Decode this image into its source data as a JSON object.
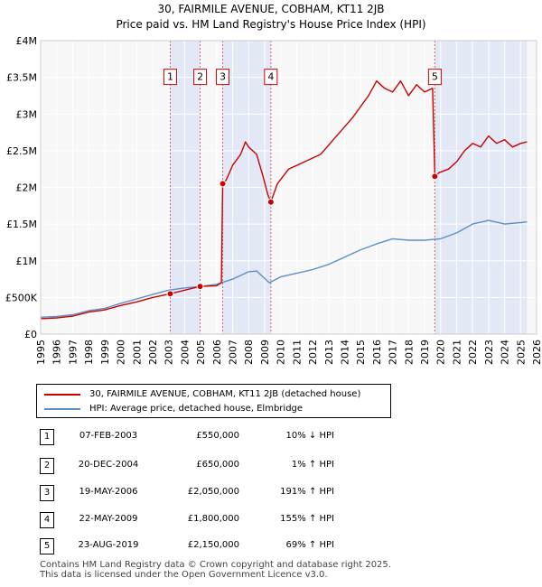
{
  "chart_data": {
    "type": "line",
    "title": "30, FAIRMILE AVENUE, COBHAM, KT11 2JB",
    "subtitle": "Price paid vs. HM Land Registry's House Price Index (HPI)",
    "xlabel": "",
    "ylabel": "",
    "xlim": [
      1995,
      2026
    ],
    "ylim": [
      0,
      4000000
    ],
    "grid": true,
    "x_ticks": [
      "1995",
      "1996",
      "1997",
      "1998",
      "1999",
      "2000",
      "2001",
      "2002",
      "2003",
      "2004",
      "2005",
      "2006",
      "2007",
      "2008",
      "2009",
      "2010",
      "2011",
      "2012",
      "2013",
      "2014",
      "2015",
      "2016",
      "2017",
      "2018",
      "2019",
      "2020",
      "2021",
      "2022",
      "2023",
      "2024",
      "2025",
      "2026"
    ],
    "y_ticks": [
      {
        "value": 0,
        "label": "£0"
      },
      {
        "value": 500000,
        "label": "£500K"
      },
      {
        "value": 1000000,
        "label": "£1M"
      },
      {
        "value": 1500000,
        "label": "£1.5M"
      },
      {
        "value": 2000000,
        "label": "£2M"
      },
      {
        "value": 2500000,
        "label": "£2.5M"
      },
      {
        "value": 3000000,
        "label": "£3M"
      },
      {
        "value": 3500000,
        "label": "£3.5M"
      },
      {
        "value": 4000000,
        "label": "£4M"
      }
    ],
    "shaded_periods": [
      [
        2003.1,
        2004.97
      ],
      [
        2006.38,
        2009.39
      ],
      [
        2019.64,
        2025.4
      ]
    ],
    "series": [
      {
        "name": "30, FAIRMILE AVENUE, COBHAM, KT11 2JB (detached house)",
        "color": "#cc0000",
        "points": [
          [
            1995.0,
            210000
          ],
          [
            1996.0,
            220000
          ],
          [
            1997.0,
            245000
          ],
          [
            1998.0,
            300000
          ],
          [
            1999.0,
            330000
          ],
          [
            2000.0,
            390000
          ],
          [
            2001.0,
            440000
          ],
          [
            2002.0,
            500000
          ],
          [
            2003.1,
            550000
          ],
          [
            2004.0,
            600000
          ],
          [
            2004.97,
            650000
          ],
          [
            2006.0,
            660000
          ],
          [
            2006.3,
            700000
          ],
          [
            2006.38,
            2050000
          ],
          [
            2006.6,
            2100000
          ],
          [
            2007.0,
            2300000
          ],
          [
            2007.5,
            2450000
          ],
          [
            2007.8,
            2620000
          ],
          [
            2008.0,
            2550000
          ],
          [
            2008.5,
            2450000
          ],
          [
            2008.9,
            2150000
          ],
          [
            2009.2,
            1900000
          ],
          [
            2009.39,
            1800000
          ],
          [
            2009.8,
            2050000
          ],
          [
            2010.5,
            2250000
          ],
          [
            2011.5,
            2350000
          ],
          [
            2012.5,
            2450000
          ],
          [
            2013.5,
            2700000
          ],
          [
            2014.5,
            2950000
          ],
          [
            2015.5,
            3250000
          ],
          [
            2016.0,
            3450000
          ],
          [
            2016.5,
            3350000
          ],
          [
            2017.0,
            3300000
          ],
          [
            2017.5,
            3450000
          ],
          [
            2018.0,
            3250000
          ],
          [
            2018.5,
            3400000
          ],
          [
            2019.0,
            3300000
          ],
          [
            2019.5,
            3350000
          ],
          [
            2019.64,
            2150000
          ],
          [
            2019.9,
            2200000
          ],
          [
            2020.5,
            2250000
          ],
          [
            2021.0,
            2350000
          ],
          [
            2021.5,
            2500000
          ],
          [
            2022.0,
            2600000
          ],
          [
            2022.5,
            2550000
          ],
          [
            2023.0,
            2700000
          ],
          [
            2023.5,
            2600000
          ],
          [
            2024.0,
            2650000
          ],
          [
            2024.5,
            2550000
          ],
          [
            2025.0,
            2600000
          ],
          [
            2025.4,
            2620000
          ]
        ]
      },
      {
        "name": "HPI: Average price, detached house, Elmbridge",
        "color": "#5b8fc7",
        "points": [
          [
            1995.0,
            230000
          ],
          [
            1996.0,
            240000
          ],
          [
            1997.0,
            265000
          ],
          [
            1998.0,
            320000
          ],
          [
            1999.0,
            350000
          ],
          [
            2000.0,
            420000
          ],
          [
            2001.0,
            480000
          ],
          [
            2002.0,
            540000
          ],
          [
            2003.0,
            600000
          ],
          [
            2004.0,
            630000
          ],
          [
            2005.0,
            650000
          ],
          [
            2006.0,
            680000
          ],
          [
            2007.0,
            750000
          ],
          [
            2008.0,
            850000
          ],
          [
            2008.5,
            860000
          ],
          [
            2009.0,
            760000
          ],
          [
            2009.3,
            700000
          ],
          [
            2010.0,
            780000
          ],
          [
            2011.0,
            830000
          ],
          [
            2012.0,
            880000
          ],
          [
            2013.0,
            950000
          ],
          [
            2014.0,
            1050000
          ],
          [
            2015.0,
            1150000
          ],
          [
            2016.0,
            1230000
          ],
          [
            2017.0,
            1300000
          ],
          [
            2018.0,
            1280000
          ],
          [
            2019.0,
            1280000
          ],
          [
            2020.0,
            1300000
          ],
          [
            2021.0,
            1380000
          ],
          [
            2022.0,
            1500000
          ],
          [
            2023.0,
            1550000
          ],
          [
            2024.0,
            1500000
          ],
          [
            2025.0,
            1520000
          ],
          [
            2025.4,
            1530000
          ]
        ]
      }
    ],
    "markers": [
      {
        "label": "1",
        "x": 2003.1,
        "y": 550000
      },
      {
        "label": "2",
        "x": 2004.97,
        "y": 650000
      },
      {
        "label": "3",
        "x": 2006.38,
        "y": 2050000
      },
      {
        "label": "4",
        "x": 2009.39,
        "y": 1800000
      },
      {
        "label": "5",
        "x": 2019.64,
        "y": 2150000
      }
    ]
  },
  "legend": [
    {
      "label": "30, FAIRMILE AVENUE, COBHAM, KT11 2JB (detached house)",
      "color": "#cc0000"
    },
    {
      "label": "HPI: Average price, detached house, Elmbridge",
      "color": "#5b8fc7"
    }
  ],
  "sales": [
    {
      "num": "1",
      "date": "07-FEB-2003",
      "price": "£550,000",
      "hpi": "10% ↓ HPI"
    },
    {
      "num": "2",
      "date": "20-DEC-2004",
      "price": "£650,000",
      "hpi": "1% ↑ HPI"
    },
    {
      "num": "3",
      "date": "19-MAY-2006",
      "price": "£2,050,000",
      "hpi": "191% ↑ HPI"
    },
    {
      "num": "4",
      "date": "22-MAY-2009",
      "price": "£1,800,000",
      "hpi": "155% ↑ HPI"
    },
    {
      "num": "5",
      "date": "23-AUG-2019",
      "price": "£2,150,000",
      "hpi": "69% ↑ HPI"
    }
  ],
  "footer": {
    "line1": "Contains HM Land Registry data © Crown copyright and database right 2025.",
    "line2": "This data is licensed under the Open Government Licence v3.0."
  }
}
